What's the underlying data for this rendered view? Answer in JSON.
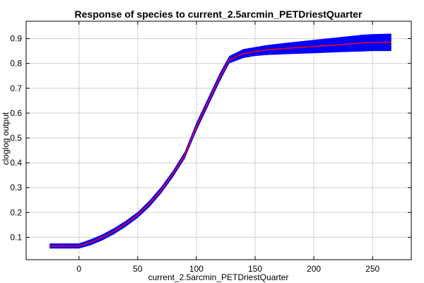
{
  "chart_data": {
    "type": "line",
    "title": "Response of species to current_2.5arcmin_PETDriestQuarter",
    "xlabel": "current_2.5arcmin_PETDriestQuarter",
    "ylabel": "cloglog output",
    "xlim": [
      -45,
      283
    ],
    "ylim": [
      0.01,
      0.97
    ],
    "xticks": [
      0,
      50,
      100,
      150,
      200,
      250
    ],
    "yticks": [
      0.1,
      0.2,
      0.3,
      0.4,
      0.5,
      0.6,
      0.7,
      0.8,
      0.9
    ],
    "grid": true,
    "colors": {
      "band": "#0000ff",
      "line": "#ff0000"
    },
    "series": [
      {
        "x": [
          -25,
          0,
          10,
          20,
          30,
          40,
          50,
          60,
          70,
          80,
          90,
          100,
          110,
          120,
          128,
          140,
          150,
          160,
          180,
          200,
          220,
          240,
          250,
          266
        ],
        "values": [
          0.065,
          0.065,
          0.08,
          0.1,
          0.125,
          0.155,
          0.19,
          0.235,
          0.29,
          0.355,
          0.43,
          0.545,
          0.645,
          0.745,
          0.815,
          0.84,
          0.848,
          0.855,
          0.862,
          0.868,
          0.875,
          0.882,
          0.885,
          0.885
        ],
        "lower": [
          0.055,
          0.055,
          0.068,
          0.088,
          0.113,
          0.143,
          0.178,
          0.222,
          0.277,
          0.342,
          0.416,
          0.528,
          0.628,
          0.728,
          0.8,
          0.822,
          0.83,
          0.834,
          0.838,
          0.841,
          0.845,
          0.848,
          0.85,
          0.85
        ],
        "upper": [
          0.075,
          0.075,
          0.092,
          0.112,
          0.137,
          0.167,
          0.202,
          0.248,
          0.303,
          0.368,
          0.444,
          0.562,
          0.662,
          0.762,
          0.83,
          0.858,
          0.866,
          0.874,
          0.885,
          0.895,
          0.905,
          0.915,
          0.918,
          0.92
        ]
      }
    ]
  }
}
